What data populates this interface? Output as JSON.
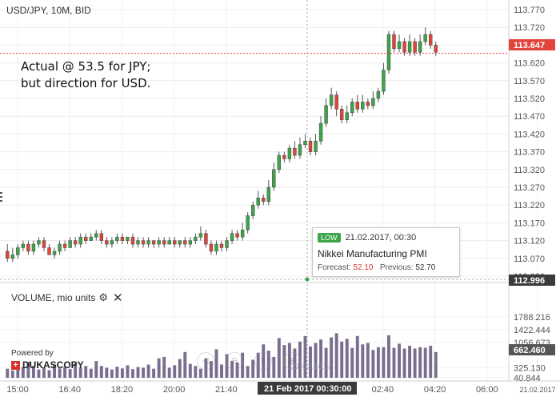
{
  "header": {
    "instrument_title": "USD/JPY, 10M, BID"
  },
  "annotation": {
    "line1": "Actual @ 53.5 for JPY;",
    "line2": "but direction for USD."
  },
  "price_axis": {
    "ticks": [
      "113.770",
      "113.720",
      "113.670",
      "113.620",
      "113.570",
      "113.520",
      "113.470",
      "113.420",
      "113.370",
      "113.320",
      "113.270",
      "113.220",
      "113.170",
      "113.120",
      "113.070",
      "113.020"
    ],
    "current_price": "113.647",
    "hover_price": "112.996",
    "current_price_value": 113.647,
    "current_price_color": "#e0443a",
    "hover_price_color": "#3a3a3a"
  },
  "event_tooltip": {
    "badge": "LOW",
    "datetime": "21.02.2017, 00:30",
    "title": "Nikkei Manufacturing PMI",
    "forecast_label": "Forecast:",
    "forecast_value": "52.10",
    "previous_label": "Previous:",
    "previous_value": "52.70",
    "badge_color": "#3ca548"
  },
  "volume_panel": {
    "title": "VOLUME, mio units",
    "gear_icon": "gear-icon",
    "close_icon": "close-icon",
    "ticks": [
      "1788.216",
      "1422.444",
      "1056.673",
      "325.130",
      "40.844"
    ],
    "current_volume": "662.460",
    "bar_color": "#7a6e8e"
  },
  "time_axis": {
    "ticks": [
      "15:00",
      "16:40",
      "18:20",
      "20:00",
      "21:40",
      "02:40",
      "04:20",
      "06:00",
      "21.02.2017"
    ],
    "crosshair_label": "21 Feb 2017 00:30:00"
  },
  "branding": {
    "powered_by": "Powered by",
    "logo_text": "DUKASCOPY"
  },
  "nav_overlay": {
    "date_text": "21.02.2017"
  },
  "chart_data": {
    "type": "candlestick",
    "title": "USD/JPY, 10M, BID",
    "colors": {
      "up": "#3ca548",
      "down": "#e0443a",
      "wick": "#555555"
    },
    "ylim": [
      113.02,
      113.77
    ],
    "candles": [
      [
        113.09,
        113.07,
        113.11,
        113.06
      ],
      [
        113.07,
        113.08,
        113.1,
        113.06
      ],
      [
        113.08,
        113.1,
        113.11,
        113.07
      ],
      [
        113.1,
        113.11,
        113.12,
        113.09
      ],
      [
        113.11,
        113.09,
        113.12,
        113.08
      ],
      [
        113.09,
        113.11,
        113.12,
        113.08
      ],
      [
        113.11,
        113.12,
        113.13,
        113.1
      ],
      [
        113.12,
        113.1,
        113.13,
        113.09
      ],
      [
        113.1,
        113.08,
        113.11,
        113.08
      ],
      [
        113.08,
        113.09,
        113.1,
        113.07
      ],
      [
        113.09,
        113.11,
        113.12,
        113.08
      ],
      [
        113.11,
        113.1,
        113.12,
        113.09
      ],
      [
        113.1,
        113.12,
        113.13,
        113.1
      ],
      [
        113.12,
        113.11,
        113.13,
        113.1
      ],
      [
        113.11,
        113.13,
        113.14,
        113.1
      ],
      [
        113.13,
        113.12,
        113.14,
        113.11
      ],
      [
        113.12,
        113.13,
        113.14,
        113.12
      ],
      [
        113.13,
        113.14,
        113.15,
        113.12
      ],
      [
        113.14,
        113.12,
        113.15,
        113.11
      ],
      [
        113.12,
        113.11,
        113.13,
        113.1
      ],
      [
        113.11,
        113.12,
        113.13,
        113.1
      ],
      [
        113.12,
        113.13,
        113.14,
        113.11
      ],
      [
        113.13,
        113.12,
        113.14,
        113.11
      ],
      [
        113.12,
        113.13,
        113.13,
        113.11
      ],
      [
        113.13,
        113.11,
        113.14,
        113.1
      ],
      [
        113.11,
        113.12,
        113.13,
        113.1
      ],
      [
        113.12,
        113.11,
        113.13,
        113.1
      ],
      [
        113.11,
        113.12,
        113.13,
        113.1
      ],
      [
        113.12,
        113.11,
        113.12,
        113.1
      ],
      [
        113.11,
        113.12,
        113.13,
        113.1
      ],
      [
        113.12,
        113.11,
        113.13,
        113.1
      ],
      [
        113.11,
        113.12,
        113.13,
        113.11
      ],
      [
        113.12,
        113.11,
        113.13,
        113.1
      ],
      [
        113.11,
        113.12,
        113.12,
        113.1
      ],
      [
        113.12,
        113.11,
        113.13,
        113.1
      ],
      [
        113.11,
        113.12,
        113.13,
        113.1
      ],
      [
        113.12,
        113.13,
        113.14,
        113.11
      ],
      [
        113.13,
        113.14,
        113.16,
        113.12
      ],
      [
        113.14,
        113.11,
        113.15,
        113.1
      ],
      [
        113.11,
        113.09,
        113.12,
        113.08
      ],
      [
        113.09,
        113.11,
        113.12,
        113.08
      ],
      [
        113.11,
        113.1,
        113.12,
        113.09
      ],
      [
        113.1,
        113.12,
        113.13,
        113.09
      ],
      [
        113.12,
        113.14,
        113.15,
        113.11
      ],
      [
        113.14,
        113.13,
        113.15,
        113.12
      ],
      [
        113.13,
        113.15,
        113.17,
        113.12
      ],
      [
        113.15,
        113.19,
        113.2,
        113.14
      ],
      [
        113.19,
        113.22,
        113.23,
        113.18
      ],
      [
        113.22,
        113.24,
        113.26,
        113.21
      ],
      [
        113.24,
        113.23,
        113.25,
        113.22
      ],
      [
        113.23,
        113.27,
        113.29,
        113.22
      ],
      [
        113.27,
        113.32,
        113.34,
        113.26
      ],
      [
        113.32,
        113.36,
        113.37,
        113.31
      ],
      [
        113.36,
        113.35,
        113.37,
        113.34
      ],
      [
        113.35,
        113.38,
        113.39,
        113.34
      ],
      [
        113.38,
        113.36,
        113.4,
        113.35
      ],
      [
        113.36,
        113.39,
        113.41,
        113.35
      ],
      [
        113.39,
        113.4,
        113.42,
        113.38
      ],
      [
        113.4,
        113.37,
        113.41,
        113.36
      ],
      [
        113.37,
        113.4,
        113.42,
        113.36
      ],
      [
        113.4,
        113.45,
        113.47,
        113.39
      ],
      [
        113.45,
        113.5,
        113.52,
        113.44
      ],
      [
        113.5,
        113.53,
        113.55,
        113.49
      ],
      [
        113.53,
        113.49,
        113.54,
        113.47
      ],
      [
        113.49,
        113.46,
        113.5,
        113.45
      ],
      [
        113.46,
        113.48,
        113.5,
        113.45
      ],
      [
        113.48,
        113.51,
        113.52,
        113.47
      ],
      [
        113.51,
        113.49,
        113.53,
        113.48
      ],
      [
        113.49,
        113.51,
        113.53,
        113.48
      ],
      [
        113.51,
        113.5,
        113.52,
        113.49
      ],
      [
        113.5,
        113.52,
        113.54,
        113.49
      ],
      [
        113.52,
        113.54,
        113.55,
        113.51
      ],
      [
        113.54,
        113.6,
        113.62,
        113.53
      ],
      [
        113.6,
        113.7,
        113.71,
        113.59
      ],
      [
        113.7,
        113.66,
        113.71,
        113.65
      ],
      [
        113.66,
        113.68,
        113.7,
        113.65
      ],
      [
        113.68,
        113.65,
        113.69,
        113.64
      ],
      [
        113.65,
        113.68,
        113.7,
        113.64
      ],
      [
        113.68,
        113.65,
        113.69,
        113.64
      ],
      [
        113.65,
        113.68,
        113.7,
        113.64
      ],
      [
        113.68,
        113.7,
        113.72,
        113.67
      ],
      [
        113.7,
        113.67,
        113.71,
        113.66
      ],
      [
        113.67,
        113.65,
        113.68,
        113.64
      ]
    ],
    "volumes": [
      300,
      250,
      420,
      350,
      500,
      380,
      280,
      330,
      260,
      400,
      310,
      350,
      290,
      450,
      330,
      380,
      300,
      520,
      380,
      330,
      280,
      360,
      310,
      400,
      290,
      350,
      330,
      420,
      300,
      600,
      640,
      330,
      400,
      580,
      780,
      440,
      380,
      300,
      600,
      520,
      860,
      420,
      720,
      520,
      480,
      760,
      380,
      560,
      760,
      1000,
      820,
      640,
      1180,
      980,
      1040,
      880,
      1080,
      1240,
      940,
      1040,
      1140,
      900,
      1200,
      1320,
      1080,
      1160,
      900,
      1240,
      1000,
      1040,
      840,
      920,
      920,
      1260,
      900,
      1020,
      880,
      960,
      880,
      920,
      900,
      960,
      780
    ],
    "volume_ylim": [
      40.844,
      2154
    ]
  }
}
